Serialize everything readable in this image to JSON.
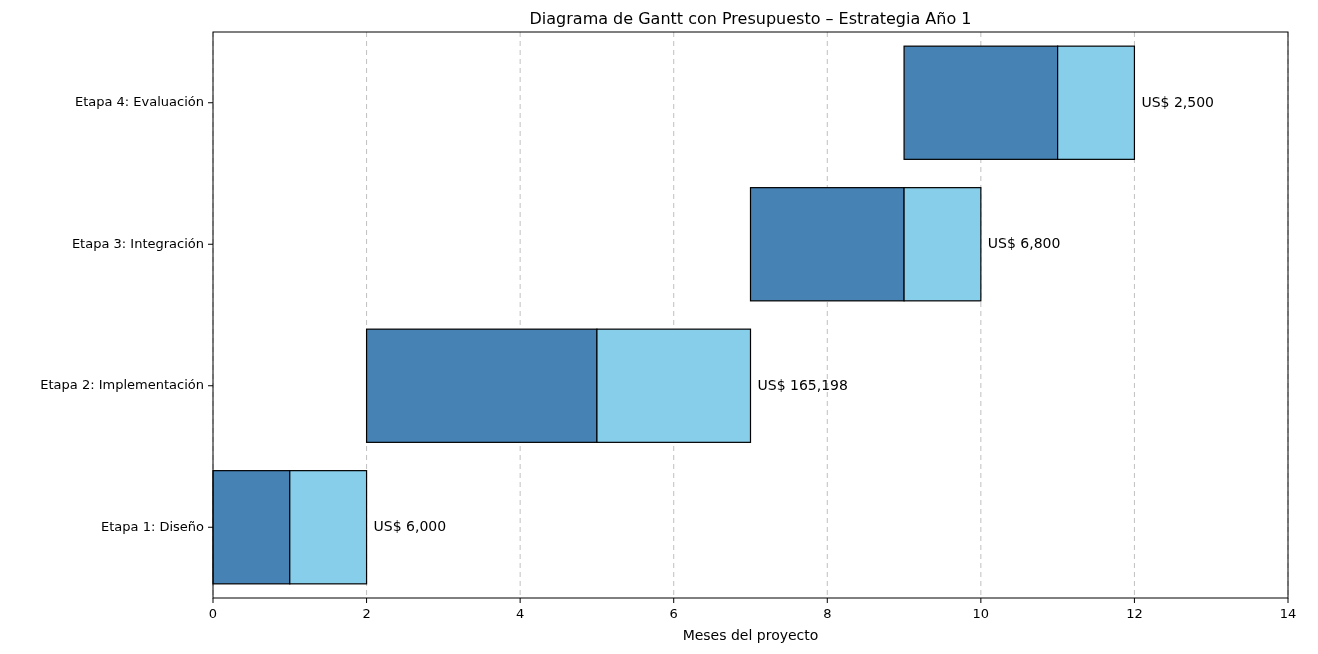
{
  "chart_data": {
    "type": "bar",
    "orientation": "horizontal",
    "title": "Diagrama de Gantt con Presupuesto – Estrategia Año 1",
    "xlabel": "Meses del proyecto",
    "categories": [
      "Etapa 4: Evaluación",
      "Etapa 3: Integración",
      "Etapa 2: Implementación",
      "Etapa 1: Diseño"
    ],
    "series": [
      {
        "color": "#4682b4",
        "values": [
          2,
          2,
          3,
          1
        ],
        "base": [
          9,
          7,
          2,
          0
        ]
      },
      {
        "color": "#87ceeb",
        "values": [
          1,
          1,
          2,
          1
        ],
        "base": [
          11,
          9,
          5,
          1
        ]
      }
    ],
    "xlim": [
      0,
      14
    ],
    "xticks": [
      0,
      2,
      4,
      6,
      8,
      10,
      12,
      14
    ],
    "grid": "x",
    "annotations": [
      "US$ 2,500",
      "US$ 6,800",
      "US$ 165,198",
      "US$ 6,000"
    ]
  }
}
